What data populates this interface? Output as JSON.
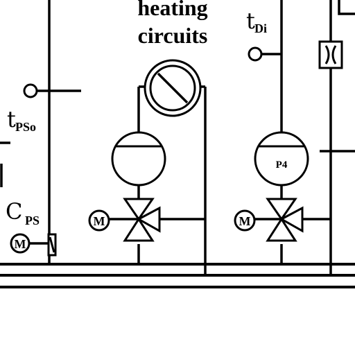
{
  "labels": {
    "heating_line1": "heating",
    "heating_line2": "circuits",
    "t_di_main": "t",
    "t_di_sub": "Di",
    "t_pso_main": "t",
    "t_pso_sub": "PSo",
    "c_ps_main": "C",
    "c_ps_sub": "PS",
    "pump_p4": "P4",
    "motor_m": "M"
  }
}
